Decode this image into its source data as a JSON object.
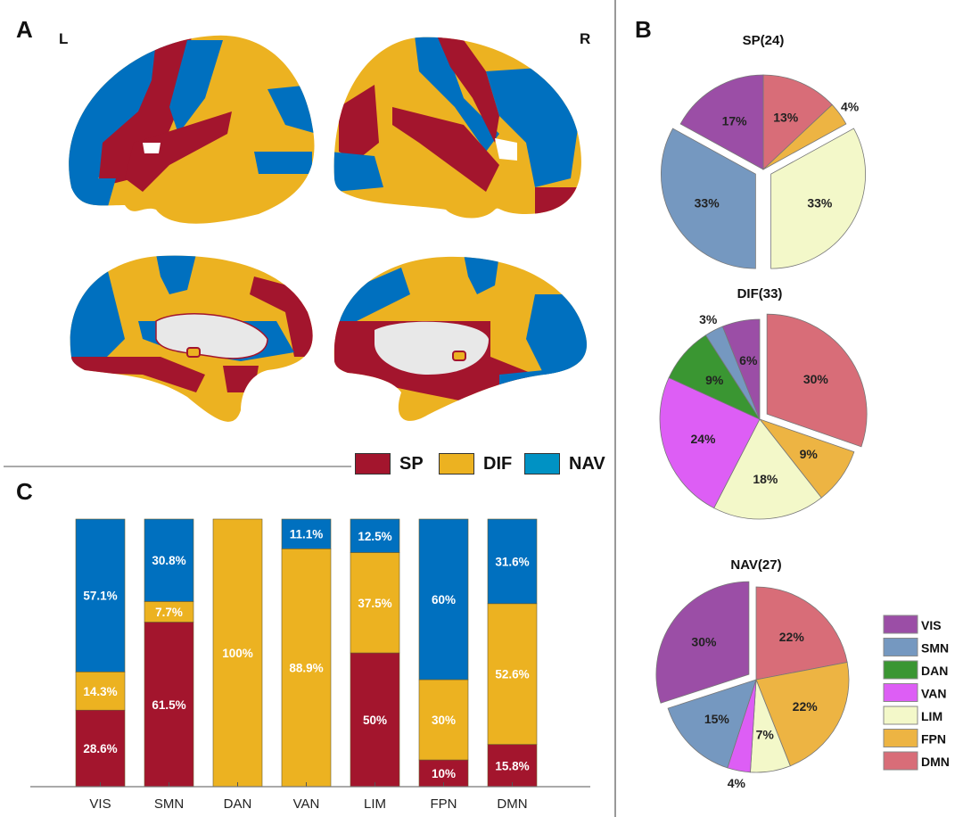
{
  "panels": {
    "a": "A",
    "b": "B",
    "c": "C"
  },
  "hemispheres": {
    "left": "L",
    "right": "R"
  },
  "colors": {
    "SP": "#a3152d",
    "DIF": "#ecb221",
    "NAV": "#0070bf",
    "medial_wall": "#e8e8e8"
  },
  "main_legend": [
    {
      "label": "SP",
      "color": "#a3152d"
    },
    {
      "label": "DIF",
      "color": "#ecb221"
    },
    {
      "label": "NAV",
      "color": "#0092c4"
    }
  ],
  "network_legend": [
    {
      "label": "VIS",
      "color": "#9b4ea6"
    },
    {
      "label": "SMN",
      "color": "#7598c0"
    },
    {
      "label": "DAN",
      "color": "#3a9632"
    },
    {
      "label": "VAN",
      "color": "#dd5ef5"
    },
    {
      "label": "LIM",
      "color": "#f3f8c9"
    },
    {
      "label": "FPN",
      "color": "#edb443"
    },
    {
      "label": "DMN",
      "color": "#d86d78"
    }
  ],
  "chart_data": [
    {
      "type": "pie",
      "title": "SP(24)",
      "order": "clockwise from top",
      "categories": [
        "DMN",
        "FPN",
        "LIM",
        "VAN",
        "DAN",
        "SMN",
        "VIS"
      ],
      "values": [
        13,
        4,
        33,
        0,
        0,
        33,
        17
      ],
      "labels": [
        "13%",
        "4%",
        "33%",
        "",
        "",
        "33%",
        "17%"
      ],
      "exploded": [
        "LIM",
        "SMN"
      ]
    },
    {
      "type": "pie",
      "title": "DIF(33)",
      "order": "clockwise from top",
      "categories": [
        "DMN",
        "FPN",
        "LIM",
        "VAN",
        "DAN",
        "SMN",
        "VIS"
      ],
      "values": [
        30,
        9,
        18,
        24,
        9,
        3,
        6
      ],
      "labels": [
        "30%",
        "9%",
        "18%",
        "24%",
        "9%",
        "3%",
        "6%"
      ],
      "exploded": [
        "DMN"
      ]
    },
    {
      "type": "pie",
      "title": "NAV(27)",
      "order": "clockwise from top",
      "categories": [
        "DMN",
        "FPN",
        "LIM",
        "VAN",
        "DAN",
        "SMN",
        "VIS"
      ],
      "values": [
        22,
        22,
        7,
        4,
        0,
        15,
        30
      ],
      "labels": [
        "22%",
        "22%",
        "7%",
        "4%",
        "",
        "15%",
        "30%"
      ],
      "exploded": [
        "VIS"
      ]
    },
    {
      "type": "bar",
      "stacked": true,
      "categories": [
        "VIS",
        "SMN",
        "DAN",
        "VAN",
        "LIM",
        "FPN",
        "DMN"
      ],
      "ylim": [
        0,
        100
      ],
      "series": [
        {
          "name": "SP",
          "values": [
            28.6,
            61.5,
            0,
            0,
            50,
            10,
            15.8
          ],
          "labels": [
            "28.6%",
            "61.5%",
            "",
            "",
            "50%",
            "10%",
            "15.8%"
          ]
        },
        {
          "name": "DIF",
          "values": [
            14.3,
            7.7,
            100,
            88.9,
            37.5,
            30,
            52.6
          ],
          "labels": [
            "14.3%",
            "7.7%",
            "100%",
            "88.9%",
            "37.5%",
            "30%",
            "52.6%"
          ]
        },
        {
          "name": "NAV",
          "values": [
            57.1,
            30.8,
            0,
            11.1,
            12.5,
            60,
            31.6
          ],
          "labels": [
            "57.1%",
            "30.8%",
            "",
            "11.1%",
            "12.5%",
            "60%",
            "31.6%"
          ]
        }
      ]
    }
  ]
}
